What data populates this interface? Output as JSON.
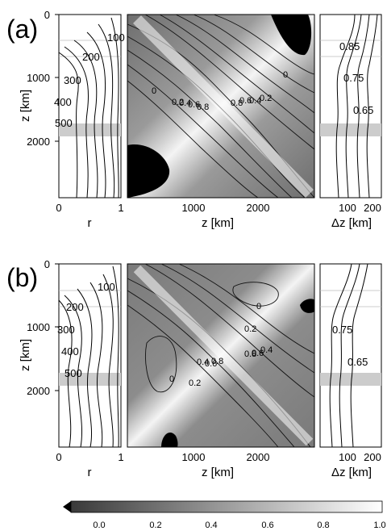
{
  "panels": [
    {
      "label": "(a)",
      "left": {
        "ylabel": "z [km]",
        "xlabel": "r",
        "yticks": [
          "0",
          "1000",
          "2000"
        ],
        "xticks": [
          "0",
          "1"
        ],
        "curve_labels": [
          "100",
          "200",
          "300",
          "400",
          "500"
        ]
      },
      "center": {
        "xlabel": "z [km]",
        "xticks": [
          "1000",
          "2000"
        ],
        "contour_labels": [
          "0",
          "0",
          "0.2",
          "0.4",
          "0.6",
          "0.8",
          "0.8",
          "0.6",
          "0.4",
          "0.2"
        ]
      },
      "right": {
        "xlabel": "Δz [km]",
        "xticks": [
          "100",
          "200"
        ],
        "curve_labels": [
          "0.85",
          "0.75",
          "0.65"
        ]
      }
    },
    {
      "label": "(b)",
      "left": {
        "ylabel": "z [km]",
        "xlabel": "r",
        "yticks": [
          "0",
          "1000",
          "2000"
        ],
        "xticks": [
          "0",
          "1"
        ],
        "curve_labels": [
          "100",
          "200",
          "300",
          "400",
          "500"
        ]
      },
      "center": {
        "xlabel": "z [km]",
        "xticks": [
          "1000",
          "2000"
        ],
        "contour_labels": [
          "0",
          "0.2",
          "0.4",
          "0.6",
          "0.8",
          "0",
          "0.2",
          "0.4",
          "0.6",
          "0.8"
        ]
      },
      "right": {
        "xlabel": "Δz [km]",
        "xticks": [
          "100",
          "200"
        ],
        "curve_labels": [
          "0.75",
          "0.65"
        ]
      }
    }
  ],
  "colorbar": {
    "ticks": [
      "0.0",
      "0.2",
      "0.4",
      "0.6",
      "0.8",
      "1.0"
    ]
  }
}
